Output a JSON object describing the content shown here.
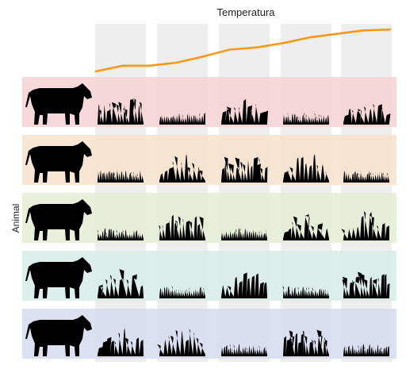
{
  "figure": {
    "title": "Temperatura",
    "ylabel": "Animal"
  },
  "colors": {
    "column": "#eeeeee",
    "temperature_line": "#f59a1b",
    "silhouette": "#000000",
    "rows": [
      "#f6d2d2",
      "#f7e2cc",
      "#e4ecd3",
      "#d6ece6",
      "#d5dcef"
    ]
  },
  "columns": [
    "col-1",
    "col-2",
    "col-3",
    "col-4",
    "col-5"
  ],
  "animals": [
    "cow",
    "cow",
    "cow",
    "cow",
    "cow"
  ],
  "grass_styles": [
    [
      "tall",
      "short",
      "clump",
      "short",
      "clump"
    ],
    [
      "short",
      "clump",
      "tall",
      "clump",
      "short"
    ],
    [
      "short",
      "tall",
      "short",
      "clump",
      "clump"
    ],
    [
      "clump",
      "short",
      "clump",
      "short",
      "tall"
    ],
    [
      "clump",
      "clump",
      "short",
      "tall",
      "short"
    ]
  ],
  "temperature": [
    0.0,
    0.13,
    0.13,
    0.2,
    0.34,
    0.5,
    0.55,
    0.65,
    0.78,
    0.86,
    0.94,
    0.96
  ]
}
